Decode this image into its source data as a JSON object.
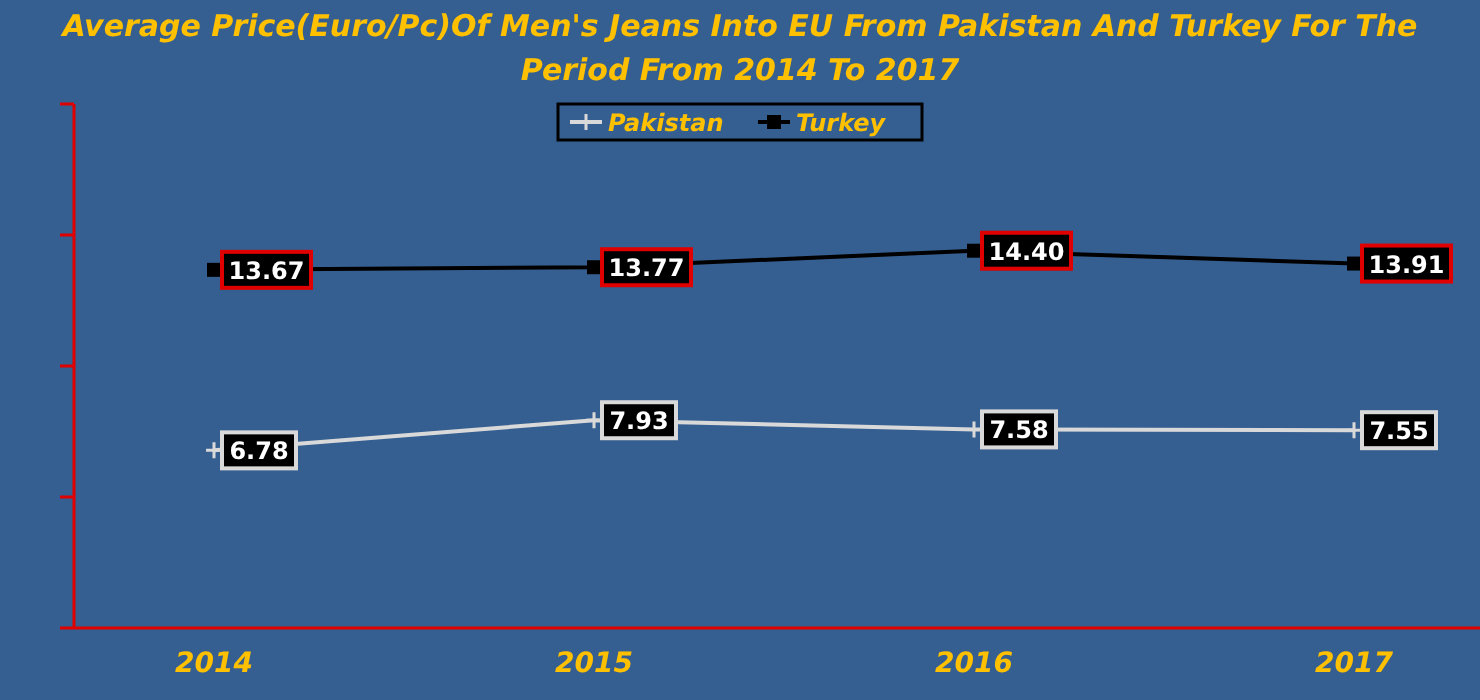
{
  "chart_data": {
    "type": "line",
    "title": "Average Price(Euro/Pc)Of Men's Jeans Into EU From Pakistan And Turkey For The Period From 2014 To 2017",
    "categories": [
      "2014",
      "2015",
      "2016",
      "2017"
    ],
    "series": [
      {
        "name": "Pakistan",
        "color": "#d9d9d9",
        "values": [
          6.78,
          7.93,
          7.58,
          7.55
        ],
        "value_labels": [
          "6.78",
          "7.93",
          "7.58",
          "7.55"
        ],
        "marker": "cross"
      },
      {
        "name": "Turkey",
        "color": "#000000",
        "values": [
          13.67,
          13.77,
          14.4,
          13.91
        ],
        "value_labels": [
          "13.67",
          "13.77",
          "14.40",
          "13.91"
        ],
        "marker": "square"
      }
    ],
    "ylim": [
      0,
      20
    ],
    "yticks": [
      {
        "value": 0,
        "label": null
      },
      {
        "value": 5,
        "label": null
      },
      {
        "value": 10,
        "label": null
      },
      {
        "value": 15,
        "label": null
      },
      {
        "value": 20,
        "label": null
      }
    ],
    "tick_labels": "x",
    "legend": "top",
    "grid": false,
    "line_style": "solid"
  }
}
